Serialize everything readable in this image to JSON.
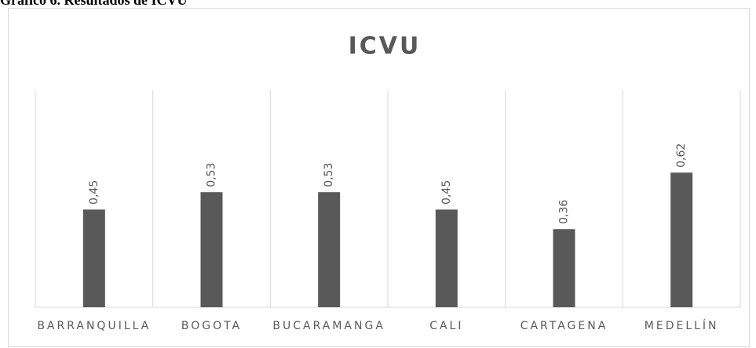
{
  "caption": "Gráfico 6. Resultados de ICVU",
  "chart_data": {
    "type": "bar",
    "title": "ICVU",
    "categories": [
      "BARRANQUILLA",
      "BOGOTA",
      "BUCARAMANGA",
      "CALI",
      "CARTAGENA",
      "MEDELLÍN"
    ],
    "values": [
      0.45,
      0.53,
      0.53,
      0.45,
      0.36,
      0.62
    ],
    "value_labels": [
      "0,45",
      "0,53",
      "0,53",
      "0,45",
      "0,36",
      "0,62"
    ],
    "color": "#595959",
    "ylim": [
      0,
      1
    ]
  }
}
